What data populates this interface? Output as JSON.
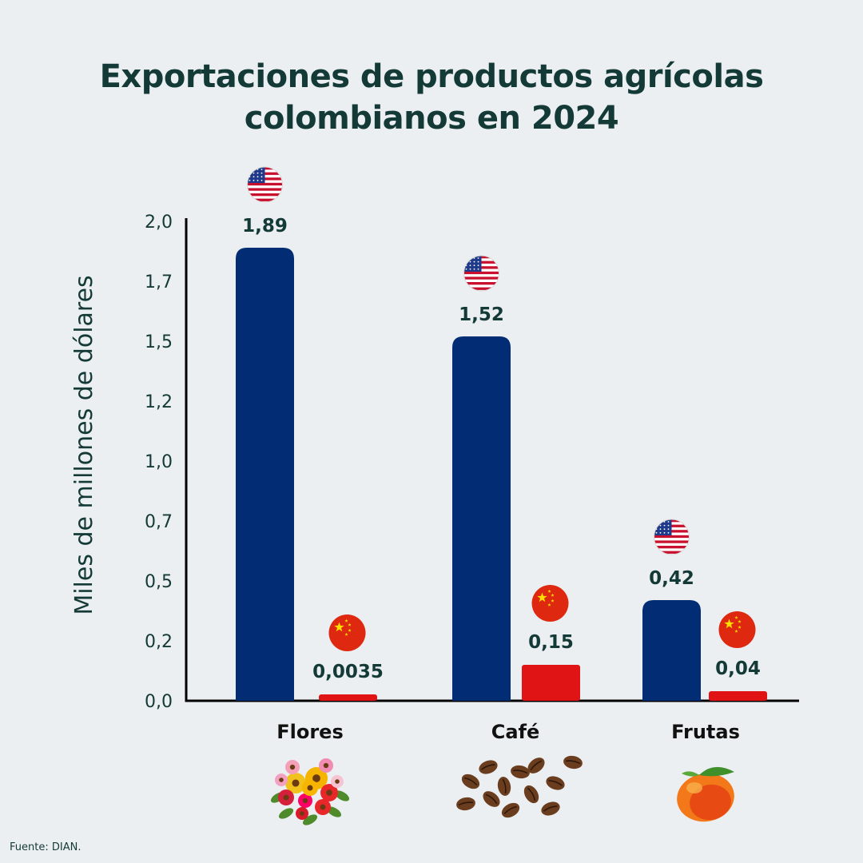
{
  "title_line1": "Exportaciones de productos agrícolas",
  "title_line2": "colombianos en 2024",
  "source": "Fuente: DIAN.",
  "colors": {
    "usa": "#022c73",
    "china": "#e01414",
    "text": "#143a38",
    "background": "#eceff2"
  },
  "chart_data": {
    "type": "bar",
    "ylabel": "Miles de millones de dólares",
    "yticks": [
      "0,0",
      "0,2",
      "0,5",
      "0,7",
      "1,0",
      "1,2",
      "1,5",
      "1,7",
      "2,0"
    ],
    "ylim": [
      0,
      2
    ],
    "grid": false,
    "categories": [
      "Flores",
      "Café",
      "Frutas"
    ],
    "category_icons": [
      "flower-bouquet",
      "coffee-beans",
      "mango"
    ],
    "series": [
      {
        "flag": "usa-flag",
        "values": [
          1.89,
          1.52,
          0.42
        ],
        "labels": [
          "1,89",
          "1,52",
          "0,42"
        ]
      },
      {
        "flag": "china-flag",
        "values": [
          0.0035,
          0.15,
          0.04
        ],
        "labels": [
          "0,0035",
          "0,15",
          "0,04"
        ]
      }
    ]
  }
}
